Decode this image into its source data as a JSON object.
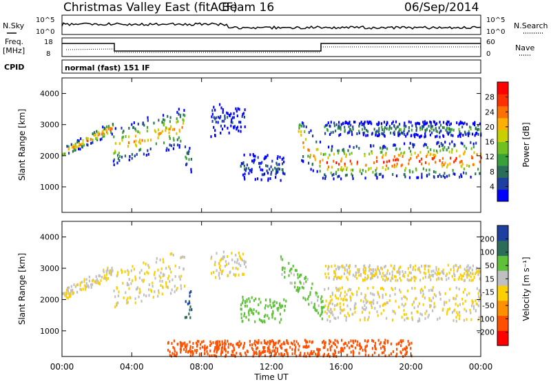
{
  "header": {
    "title": "Christmas Valley East (fitACF)",
    "beam": "Beam 16",
    "date": "06/Sep/2014"
  },
  "param_panels": {
    "nsky_label": "N.Sky",
    "nsky_ticks": [
      "10^5",
      "10^0"
    ],
    "nsearch_label": "N.Search",
    "nsearch_ticks": [
      "10^5",
      "10^0"
    ],
    "freq_label": "Freq.",
    "freq_unit": "[MHz]",
    "freq_ticks": [
      "18",
      "8"
    ],
    "nave_label": "Nave",
    "nave_ticks": [
      "60",
      "0"
    ],
    "cpid_label": "CPID",
    "cpid_value": "normal (fast) 151 IF"
  },
  "chart_data": [
    {
      "type": "heatmap",
      "name": "power",
      "ylabel": "Slant Range [km]",
      "yticks": [
        "4000",
        "3000",
        "2000",
        "1000"
      ],
      "ylim": [
        180,
        4500
      ],
      "xlim": [
        0,
        24
      ],
      "colorbar_label": "Power [dB]",
      "colorbar_ticks": [
        "28",
        "24",
        "20",
        "16",
        "12",
        "8",
        "4"
      ],
      "colorbar_range": [
        0,
        32
      ],
      "colors": [
        "#0000ff",
        "#1c3fa0",
        "#2a6e5a",
        "#3aa03a",
        "#6fc020",
        "#c8d000",
        "#ffb000",
        "#ff7000",
        "#ff3000",
        "#ff0000"
      ],
      "bands": [
        {
          "x": [
            0,
            2.9
          ],
          "range_start": [
            1950,
            2700
          ],
          "range_end": [
            2250,
            3100
          ],
          "peak_db": 30
        },
        {
          "x": [
            2.9,
            7.0
          ],
          "range_start": [
            1700,
            2300
          ],
          "range_end": [
            2900,
            3600
          ],
          "peak_db": 26
        },
        {
          "x": [
            7.0,
            7.4
          ],
          "range_start": [
            1500,
            1400
          ],
          "range_end": [
            2400,
            2300
          ],
          "peak_db": 12
        },
        {
          "x": [
            8.5,
            10.5
          ],
          "range_start": [
            2600,
            2800
          ],
          "range_end": [
            3700,
            3500
          ],
          "peak_db": 8
        },
        {
          "x": [
            10.2,
            12.8
          ],
          "range_start": [
            1200,
            1200
          ],
          "range_end": [
            2100,
            2000
          ],
          "peak_db": 10
        },
        {
          "x": [
            13.5,
            15.0
          ],
          "range_start": [
            1900,
            1200
          ],
          "range_end": [
            3300,
            2300
          ],
          "peak_db": 30
        },
        {
          "x": [
            15.0,
            24.0
          ],
          "range_start": [
            1250,
            1300
          ],
          "range_end": [
            2300,
            2500
          ],
          "peak_db": 32
        },
        {
          "x": [
            15.0,
            24.0
          ],
          "range_start": [
            2600,
            2600
          ],
          "range_end": [
            3100,
            3100
          ],
          "peak_db": 14
        }
      ]
    },
    {
      "type": "heatmap",
      "name": "velocity",
      "ylabel": "Slant Range [km]",
      "yticks": [
        "4000",
        "3000",
        "2000",
        "1000"
      ],
      "ylim": [
        180,
        4500
      ],
      "xlim": [
        0,
        24
      ],
      "xlabel": "Time UT",
      "xticks": [
        "00:00",
        "04:00",
        "08:00",
        "12:00",
        "16:00",
        "20:00",
        "00:00"
      ],
      "colorbar_label": "Velocity [m s⁻¹]",
      "colorbar_ticks": [
        "200",
        "100",
        "50",
        "15",
        "-15",
        "-50",
        "-100",
        "-200"
      ],
      "colors": [
        "#1c3fa0",
        "#2a6e5a",
        "#5fc03a",
        "#c0c0c0",
        "#ffd000",
        "#ff9000",
        "#ff5000",
        "#ff0000"
      ],
      "bands": [
        {
          "x": [
            0,
            2.9
          ],
          "range_start": [
            1950,
            2700
          ],
          "range_end": [
            2300,
            3100
          ],
          "velocity": 0
        },
        {
          "x": [
            2.9,
            7.0
          ],
          "range_start": [
            1700,
            2300
          ],
          "range_end": [
            2900,
            3600
          ],
          "velocity": 0
        },
        {
          "x": [
            7.0,
            7.4
          ],
          "range_start": [
            1400,
            1400
          ],
          "range_end": [
            2300,
            2300
          ],
          "velocity": 150
        },
        {
          "x": [
            8.5,
            10.5
          ],
          "range_start": [
            2600,
            2800
          ],
          "range_end": [
            3700,
            3500
          ],
          "velocity": 0
        },
        {
          "x": [
            10.2,
            12.8
          ],
          "range_start": [
            1300,
            1200
          ],
          "range_end": [
            2100,
            2000
          ],
          "velocity": 60
        },
        {
          "x": [
            12.5,
            15.0
          ],
          "range_start": [
            2800,
            1300
          ],
          "range_end": [
            3400,
            2300
          ],
          "velocity": 40
        },
        {
          "x": [
            15.0,
            24.0
          ],
          "range_start": [
            1300,
            1300
          ],
          "range_end": [
            2400,
            2400
          ],
          "velocity": 0
        },
        {
          "x": [
            15.0,
            24.0
          ],
          "range_start": [
            2600,
            2600
          ],
          "range_end": [
            3100,
            3100
          ],
          "velocity": 0
        },
        {
          "x": [
            6.0,
            20.0
          ],
          "range_start": [
            180,
            180
          ],
          "range_end": [
            700,
            700
          ],
          "velocity": -120
        }
      ]
    }
  ]
}
